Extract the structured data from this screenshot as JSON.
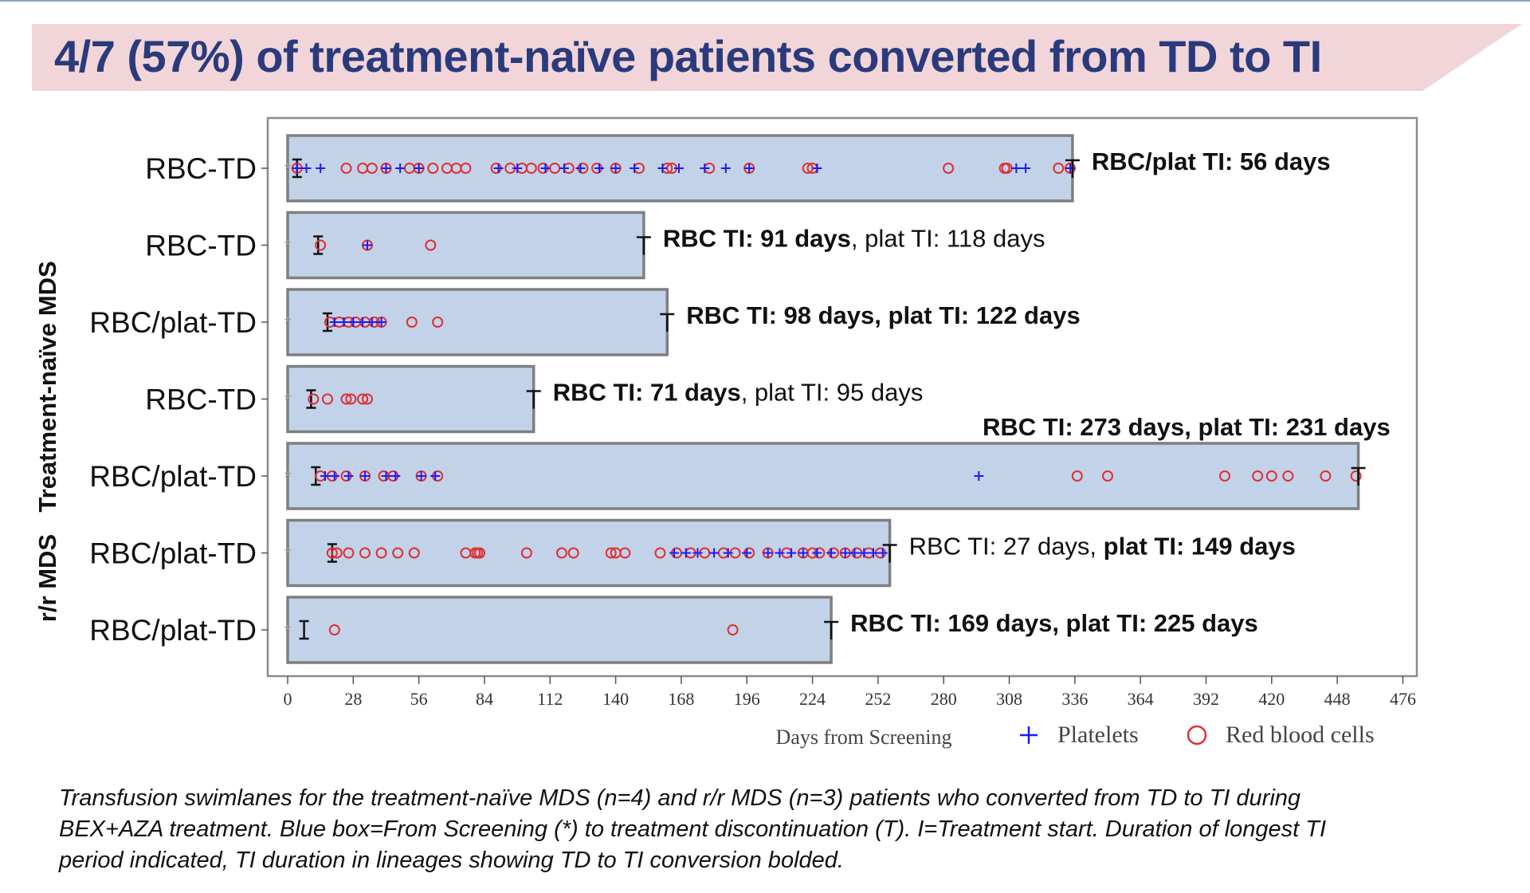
{
  "title": "4/7 (57%) of  treatment-naïve patients converted from TD to TI",
  "colors": {
    "title_text": "#2a3b7c",
    "banner": "#f1d5d9",
    "box_fill": "#c2d2e9",
    "box_stroke": "#7f7f7f",
    "platelet": "#1a1aff",
    "rbc": "#e03030"
  },
  "chart_data": {
    "type": "swimlane",
    "xlabel": "Days from Screening",
    "x_ticks": [
      0,
      28,
      56,
      84,
      112,
      140,
      168,
      196,
      224,
      252,
      280,
      308,
      336,
      364,
      392,
      420,
      448,
      476
    ],
    "xlim": [
      -5,
      485
    ],
    "legend": {
      "position": "bottom-right",
      "items": [
        {
          "label": "Platelets",
          "marker": "plus"
        },
        {
          "label": "Red blood cells",
          "marker": "circle"
        }
      ]
    },
    "groups": [
      {
        "label": "Treatment-naïve MDS",
        "lanes": [
          0,
          1,
          2,
          3
        ]
      },
      {
        "label": "r/r MDS",
        "lanes": [
          4,
          5,
          6
        ]
      }
    ],
    "lanes": [
      {
        "label": "RBC-TD",
        "end": 335,
        "treatment_start": 4,
        "end_marker": "T",
        "annotation": [
          {
            "text": "RBC/plat TI: ",
            "bold": true
          },
          {
            "text": "56 days",
            "bold": true
          }
        ],
        "annotation_above": false,
        "platelets": [
          4,
          8,
          14,
          42,
          48,
          56,
          90,
          98,
          110,
          118,
          125,
          133,
          140,
          148,
          160,
          167,
          178,
          187,
          197,
          226,
          311,
          315,
          334
        ],
        "rbc": [
          4,
          25,
          32,
          36,
          42,
          52,
          56,
          62,
          68,
          72,
          76,
          89,
          95,
          100,
          104,
          109,
          114,
          120,
          126,
          132,
          140,
          150,
          162,
          164,
          180,
          197,
          222,
          224,
          282,
          306,
          307,
          329,
          334
        ]
      },
      {
        "label": "RBC-TD",
        "end": 152,
        "treatment_start": 13,
        "end_marker": "T",
        "annotation": [
          {
            "text": "RBC TI: 91 days",
            "bold": true
          },
          {
            "text": ", plat TI: 118 days",
            "bold": false
          }
        ],
        "annotation_above": false,
        "platelets": [
          34
        ],
        "rbc": [
          14,
          34,
          61
        ]
      },
      {
        "label": "RBC/plat-TD",
        "end": 162,
        "treatment_start": 17,
        "end_marker": "T",
        "annotation": [
          {
            "text": "RBC TI: 98 days, plat TI: 122 days",
            "bold": true
          }
        ],
        "annotation_above": false,
        "platelets": [
          20,
          24,
          28,
          32,
          36,
          40
        ],
        "rbc": [
          18,
          22,
          26,
          29,
          33,
          37,
          40,
          53,
          64
        ]
      },
      {
        "label": "RBC-TD",
        "end": 105,
        "treatment_start": 10,
        "end_marker": "T",
        "annotation": [
          {
            "text": "RBC TI: 71 days",
            "bold": true
          },
          {
            "text": ", plat TI: 95 days",
            "bold": false
          }
        ],
        "annotation_above": false,
        "platelets": [],
        "rbc": [
          11,
          17,
          25,
          27,
          32,
          34
        ]
      },
      {
        "label": "RBC/plat-TD",
        "end": 457,
        "treatment_start": 12,
        "end_marker": "T",
        "annotation": [
          {
            "text": "RBC TI: 273 days, plat TI: 231 days",
            "bold": true
          }
        ],
        "annotation_above": true,
        "platelets": [
          16,
          20,
          26,
          33,
          42,
          46,
          57,
          63,
          295
        ],
        "rbc": [
          14,
          19,
          25,
          33,
          41,
          45,
          57,
          64,
          337,
          350,
          400,
          414,
          420,
          427,
          443,
          456
        ]
      },
      {
        "label": "RBC/plat-TD",
        "end": 257,
        "treatment_start": 19,
        "end_marker": "T",
        "annotation": [
          {
            "text": "RBC TI: 27 days, ",
            "bold": false
          },
          {
            "text": "plat TI: 149 days",
            "bold": true
          }
        ],
        "annotation_above": false,
        "platelets": [
          165,
          170,
          175,
          182,
          188,
          196,
          205,
          210,
          215,
          220,
          226,
          232,
          238,
          242,
          246,
          250,
          254
        ],
        "rbc": [
          19,
          21,
          26,
          33,
          40,
          47,
          54,
          76,
          80,
          81,
          82,
          102,
          117,
          122,
          138,
          140,
          144,
          159,
          166,
          172,
          178,
          186,
          191,
          197,
          205,
          213,
          220,
          224,
          227,
          233,
          238,
          243,
          248,
          253
        ]
      },
      {
        "label": "RBC/plat-TD",
        "end": 232,
        "treatment_start": 7,
        "end_marker": "T",
        "annotation": [
          {
            "text": "RBC TI: 169 days, plat TI: 225 days",
            "bold": true
          }
        ],
        "annotation_above": false,
        "platelets": [],
        "rbc": [
          20,
          190
        ]
      }
    ]
  },
  "caption": {
    "line1": "Transfusion swimlanes for the treatment-naïve MDS (n=4) and r/r MDS (n=3) patients who converted from TD to TI during",
    "line2": "BEX+AZA treatment. Blue box=From Screening (*) to treatment discontinuation (T). I=Treatment start. Duration of longest TI",
    "line3": "period indicated, TI duration in lineages showing TD to TI conversion bolded."
  }
}
